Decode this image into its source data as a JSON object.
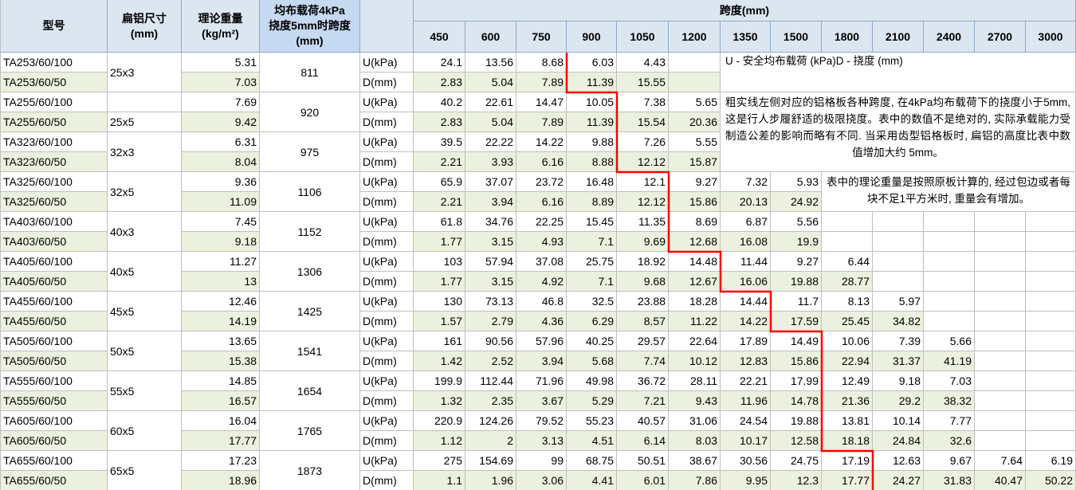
{
  "header": {
    "model": "型号",
    "size": [
      "扁铝尺寸",
      "(mm)"
    ],
    "weight": [
      "理论重量",
      "(kg/m²)"
    ],
    "span": [
      "均布载荷4kPa",
      "挠度5mm时跨度",
      "(mm)"
    ],
    "spans_title": "跨度(mm)",
    "spans": [
      450,
      600,
      750,
      900,
      1050,
      1200,
      1350,
      1500,
      1800,
      2100,
      2400,
      2700,
      3000
    ]
  },
  "row_labels": [
    "U(kPa)",
    "D(mm)"
  ],
  "groups": [
    {
      "models": [
        "TA253/60/100",
        "TA253/60/50"
      ],
      "size": "25x3",
      "weights": [
        5.31,
        7.03
      ],
      "span": 811,
      "u": [
        24.1,
        13.56,
        8.68,
        6.03,
        4.43
      ],
      "d": [
        2.83,
        5.04,
        7.89,
        11.39,
        15.55
      ]
    },
    {
      "models": [
        "TA255/60/100",
        "TA255/60/50"
      ],
      "size": "25x5",
      "weights": [
        7.69,
        9.42
      ],
      "span": 920,
      "u": [
        40.2,
        22.61,
        14.47,
        10.05,
        7.38,
        5.65
      ],
      "d": [
        2.83,
        5.04,
        7.89,
        11.39,
        15.54,
        20.36
      ]
    },
    {
      "models": [
        "TA323/60/100",
        "TA323/60/50"
      ],
      "size": "32x3",
      "weights": [
        6.31,
        8.04
      ],
      "span": 975,
      "u": [
        39.5,
        22.22,
        14.22,
        9.88,
        7.26,
        5.55
      ],
      "d": [
        2.21,
        3.93,
        6.16,
        8.88,
        12.12,
        15.87
      ]
    },
    {
      "models": [
        "TA325/60/100",
        "TA325/60/50"
      ],
      "size": "32x5",
      "weights": [
        9.36,
        11.09
      ],
      "span": 1106,
      "u": [
        65.9,
        37.07,
        23.72,
        16.48,
        12.1,
        9.27,
        7.32,
        5.93
      ],
      "d": [
        2.21,
        3.94,
        6.16,
        8.89,
        12.12,
        15.86,
        20.13,
        24.92
      ]
    },
    {
      "models": [
        "TA403/60/100",
        "TA403/60/50"
      ],
      "size": "40x3",
      "weights": [
        7.45,
        9.18
      ],
      "span": 1152,
      "u": [
        61.8,
        34.76,
        22.25,
        15.45,
        11.35,
        8.69,
        6.87,
        5.56
      ],
      "d": [
        1.77,
        3.15,
        4.93,
        7.1,
        9.69,
        12.68,
        16.08,
        19.9
      ]
    },
    {
      "models": [
        "TA405/60/100",
        "TA405/60/50"
      ],
      "size": "40x5",
      "weights": [
        11.27,
        13
      ],
      "span": 1306,
      "u": [
        103,
        57.94,
        37.08,
        25.75,
        18.92,
        14.48,
        11.44,
        9.27,
        6.44
      ],
      "d": [
        1.77,
        3.15,
        4.92,
        7.1,
        9.68,
        12.67,
        16.06,
        19.88,
        28.77
      ]
    },
    {
      "models": [
        "TA455/60/100",
        "TA455/60/50"
      ],
      "size": "45x5",
      "weights": [
        12.46,
        14.19
      ],
      "span": 1425,
      "u": [
        130,
        73.13,
        46.8,
        32.5,
        23.88,
        18.28,
        14.44,
        11.7,
        8.13,
        5.97
      ],
      "d": [
        1.57,
        2.79,
        4.36,
        6.29,
        8.57,
        11.22,
        14.22,
        17.59,
        25.45,
        34.82
      ]
    },
    {
      "models": [
        "TA505/60/100",
        "TA505/60/50"
      ],
      "size": "50x5",
      "weights": [
        13.65,
        15.38
      ],
      "span": 1541,
      "u": [
        161,
        90.56,
        57.96,
        40.25,
        29.57,
        22.64,
        17.89,
        14.49,
        10.06,
        7.39,
        5.66
      ],
      "d": [
        1.42,
        2.52,
        3.94,
        5.68,
        7.74,
        10.12,
        12.83,
        15.86,
        22.94,
        31.37,
        41.19
      ]
    },
    {
      "models": [
        "TA555/60/100",
        "TA555/60/50"
      ],
      "size": "55x5",
      "weights": [
        14.85,
        16.57
      ],
      "span": 1654,
      "u": [
        199.9,
        112.44,
        71.96,
        49.98,
        36.72,
        28.11,
        22.21,
        17.99,
        12.49,
        9.18,
        7.03
      ],
      "d": [
        1.32,
        2.35,
        3.67,
        5.29,
        7.21,
        9.43,
        11.96,
        14.78,
        21.36,
        29.2,
        38.32
      ]
    },
    {
      "models": [
        "TA605/60/100",
        "TA605/60/50"
      ],
      "size": "60x5",
      "weights": [
        16.04,
        17.77
      ],
      "span": 1765,
      "u": [
        220.9,
        124.26,
        79.52,
        55.23,
        40.57,
        31.06,
        24.54,
        19.88,
        13.81,
        10.14,
        7.77
      ],
      "d": [
        1.12,
        2,
        3.13,
        4.51,
        6.14,
        8.03,
        10.17,
        12.58,
        18.18,
        24.84,
        32.6
      ]
    },
    {
      "models": [
        "TA655/60/100",
        "TA655/60/50"
      ],
      "size": "65x5",
      "weights": [
        17.23,
        18.96
      ],
      "span": 1873,
      "u": [
        275,
        154.69,
        99,
        68.75,
        50.51,
        38.67,
        30.56,
        24.75,
        17.19,
        12.63,
        9.67,
        7.64,
        6.19
      ],
      "d": [
        1.1,
        1.96,
        3.06,
        4.41,
        6.01,
        7.86,
        9.95,
        12.3,
        17.77,
        24.27,
        31.83,
        40.47,
        50.22
      ]
    }
  ],
  "notes": [
    "U - 安全均布载荷 (kPa)D - 挠度 (mm)",
    "粗实线左侧对应的铝格板各种跨度, 在4kPa均布载荷下的挠度小于5mm, 这是行人步履舒适的极限挠度。表中的数值不是绝对的, 实际承载能力受制造公差的影响而略有不同. 当采用齿型铝格板时, 扁铝的高度比表中数值增加大约 5mm。",
    "表中的理论重量是按照原板计算的, 经过包边或者每块不足1平方米时, 重量会有增加。"
  ]
}
